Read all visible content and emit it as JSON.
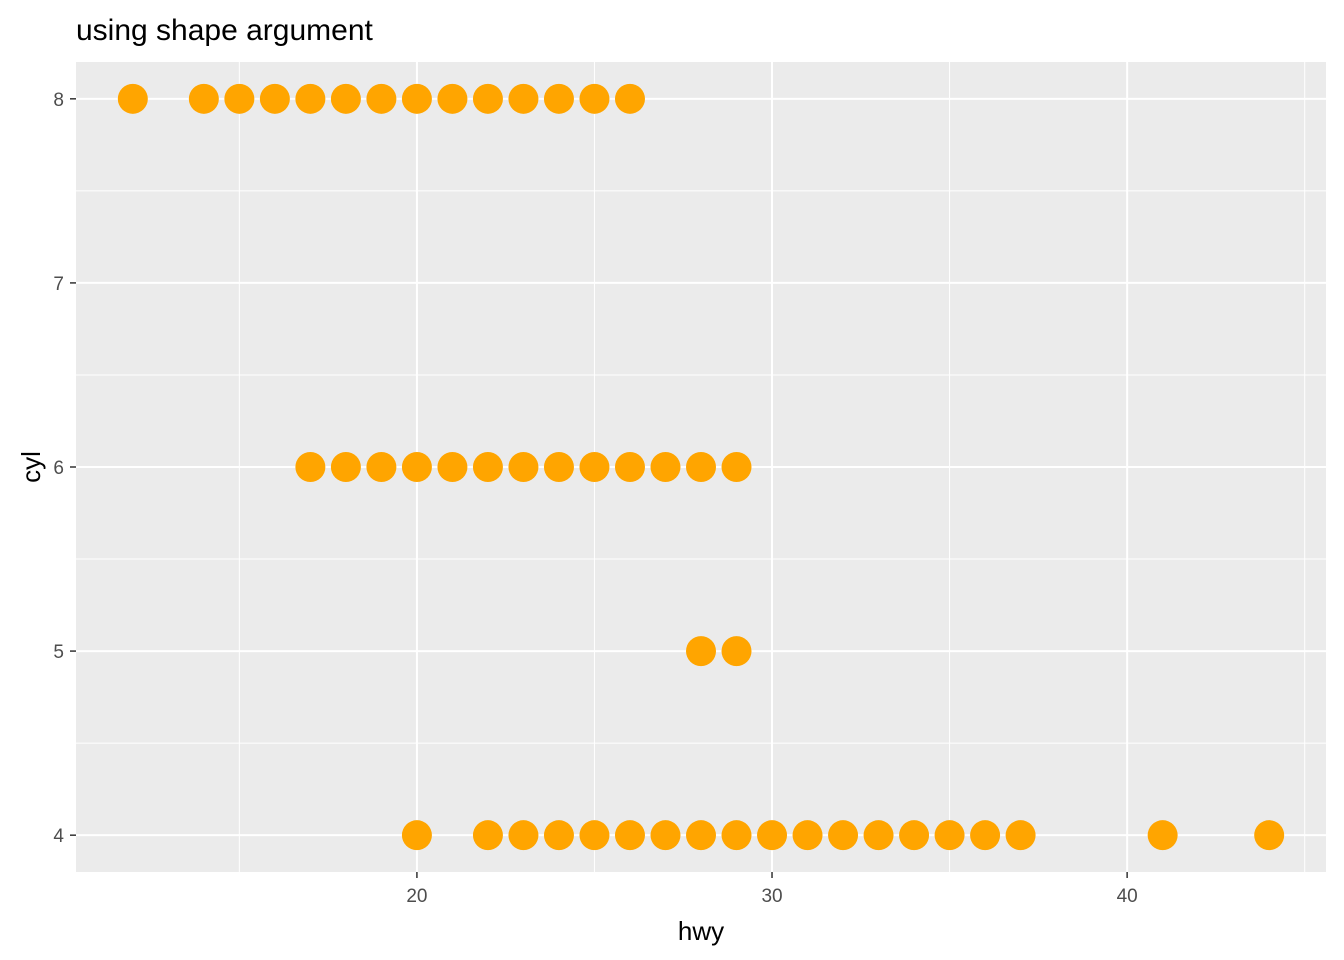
{
  "chart_data": {
    "type": "scatter",
    "title": "using shape argument",
    "xlabel": "hwy",
    "ylabel": "cyl",
    "xlim": [
      10.4,
      45.6
    ],
    "ylim": [
      3.8,
      8.2
    ],
    "x_ticks": [
      20,
      30,
      40
    ],
    "y_ticks": [
      4,
      5,
      6,
      7,
      8
    ],
    "grid": true,
    "point_color": "#FFA500",
    "panel_background": "#EBEBEB",
    "grid_color": "#FFFFFF",
    "points": [
      {
        "x": 12,
        "y": 8
      },
      {
        "x": 14,
        "y": 8
      },
      {
        "x": 15,
        "y": 8
      },
      {
        "x": 16,
        "y": 8
      },
      {
        "x": 17,
        "y": 8
      },
      {
        "x": 18,
        "y": 8
      },
      {
        "x": 19,
        "y": 8
      },
      {
        "x": 20,
        "y": 8
      },
      {
        "x": 21,
        "y": 8
      },
      {
        "x": 22,
        "y": 8
      },
      {
        "x": 23,
        "y": 8
      },
      {
        "x": 24,
        "y": 8
      },
      {
        "x": 25,
        "y": 8
      },
      {
        "x": 26,
        "y": 8
      },
      {
        "x": 17,
        "y": 6
      },
      {
        "x": 18,
        "y": 6
      },
      {
        "x": 19,
        "y": 6
      },
      {
        "x": 20,
        "y": 6
      },
      {
        "x": 21,
        "y": 6
      },
      {
        "x": 22,
        "y": 6
      },
      {
        "x": 23,
        "y": 6
      },
      {
        "x": 24,
        "y": 6
      },
      {
        "x": 25,
        "y": 6
      },
      {
        "x": 26,
        "y": 6
      },
      {
        "x": 27,
        "y": 6
      },
      {
        "x": 28,
        "y": 6
      },
      {
        "x": 29,
        "y": 6
      },
      {
        "x": 28,
        "y": 5
      },
      {
        "x": 29,
        "y": 5
      },
      {
        "x": 20,
        "y": 4
      },
      {
        "x": 22,
        "y": 4
      },
      {
        "x": 23,
        "y": 4
      },
      {
        "x": 24,
        "y": 4
      },
      {
        "x": 25,
        "y": 4
      },
      {
        "x": 26,
        "y": 4
      },
      {
        "x": 27,
        "y": 4
      },
      {
        "x": 28,
        "y": 4
      },
      {
        "x": 29,
        "y": 4
      },
      {
        "x": 30,
        "y": 4
      },
      {
        "x": 31,
        "y": 4
      },
      {
        "x": 32,
        "y": 4
      },
      {
        "x": 33,
        "y": 4
      },
      {
        "x": 34,
        "y": 4
      },
      {
        "x": 35,
        "y": 4
      },
      {
        "x": 36,
        "y": 4
      },
      {
        "x": 37,
        "y": 4
      },
      {
        "x": 41,
        "y": 4
      },
      {
        "x": 44,
        "y": 4
      }
    ]
  }
}
